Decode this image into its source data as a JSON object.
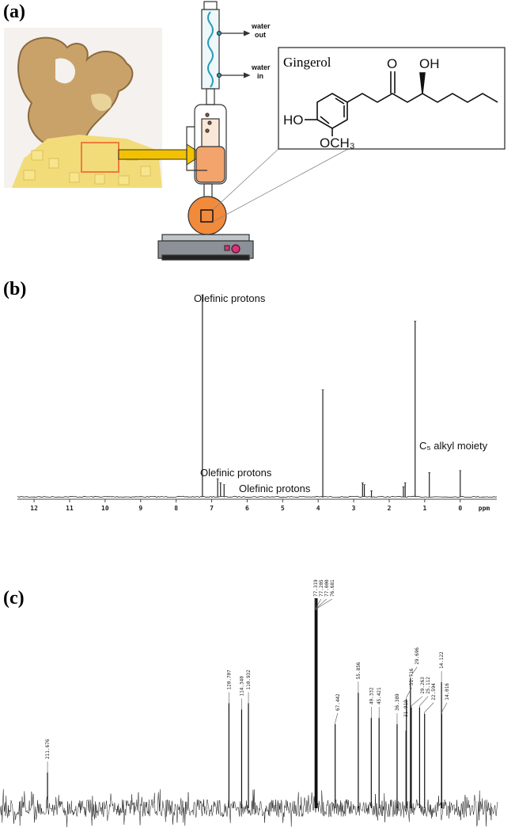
{
  "panel_a": {
    "label": "(a)",
    "water_out": [
      "water",
      "out"
    ],
    "water_in": [
      "water",
      "in"
    ],
    "structure": {
      "title": "Gingerol",
      "ketone": "O",
      "hydroxyl": "OH",
      "phenol": "HO",
      "methoxy": "OCH₃"
    }
  },
  "chart_data": [
    {
      "type": "spectrum",
      "panel_label": "(b)",
      "x": [
        7.26,
        6.83,
        6.75,
        6.65,
        3.87,
        2.75,
        2.7,
        2.5,
        1.6,
        1.55,
        1.27,
        0.87,
        0.0
      ],
      "values": [
        100,
        9,
        7,
        6,
        53,
        7,
        6,
        3,
        5,
        7,
        87,
        12,
        13
      ],
      "xlim": [
        12.47,
        -1.03
      ],
      "ylim": [
        0,
        100
      ],
      "xticks": [
        12,
        11,
        10,
        9,
        8,
        7,
        6,
        5,
        4,
        3,
        2,
        1,
        0
      ],
      "x_label": "ppm",
      "color": "#222222",
      "annotations": [
        "Olefinic protons",
        "Olefinic protons",
        "Olefinic protons",
        "C₅ alkyl moiety"
      ]
    },
    {
      "type": "spectrum",
      "panel_label": "(c)",
      "x": [
        211.676,
        120.707,
        114.34,
        110.932,
        77.319,
        77.205,
        77.0,
        76.681,
        67.442,
        55.856,
        49.332,
        45.421,
        36.389,
        31.919,
        31.716,
        29.696,
        29.263,
        25.112,
        22.594,
        14.122,
        14.016
      ],
      "peak_labels": [
        "211.676",
        "120.707",
        "114.340",
        "110.932",
        "77.319",
        "77.205",
        "77.000",
        "76.681",
        "67.442",
        "55.856",
        "49.332",
        "45.421",
        "36.389",
        "31.919",
        "31.716",
        "29.696",
        "29.263",
        "25.112",
        "22.594",
        "14.122",
        "14.016"
      ],
      "values": [
        17,
        50,
        47,
        50,
        100,
        100,
        100,
        100,
        40,
        55,
        43,
        43,
        40,
        37,
        52,
        62,
        48,
        48,
        45,
        60,
        45
      ],
      "xlim": [
        235.5,
        -14.4
      ],
      "ylim": [
        0,
        100
      ],
      "color": "#111111"
    }
  ]
}
